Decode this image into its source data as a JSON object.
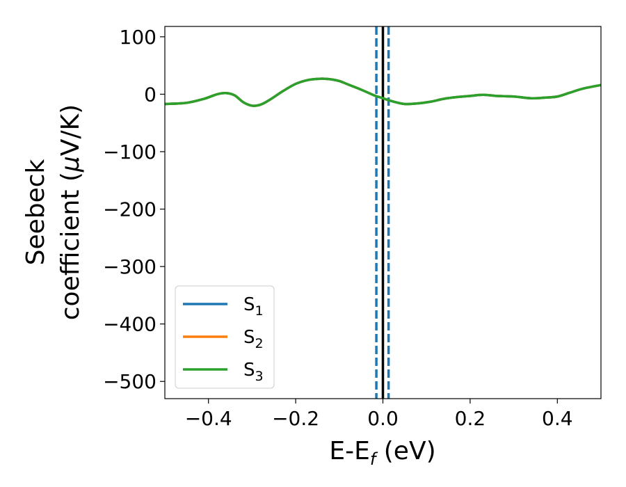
{
  "chart_data": {
    "type": "line",
    "title": "",
    "xlabel": "E-E",
    "xlabel_sub": "f",
    "xlabel_unit": " (eV)",
    "ylabel_line1": "Seebeck",
    "ylabel_line2": "coefficient  (",
    "ylabel_mu": "μ",
    "ylabel_unit": "V/K)",
    "xlim": [
      -0.5,
      0.5
    ],
    "ylim": [
      -530,
      118
    ],
    "xticks": [
      -0.4,
      -0.2,
      0.0,
      0.2,
      0.4
    ],
    "xtick_labels": [
      "−0.4",
      "−0.2",
      "0.0",
      "0.2",
      "0.4"
    ],
    "yticks": [
      100,
      0,
      -100,
      -200,
      -300,
      -400,
      -500
    ],
    "ytick_labels": [
      "100",
      "0",
      "−100",
      "−200",
      "−300",
      "−400",
      "−500"
    ],
    "grid": false,
    "legend_placement": "lower-left",
    "vertical_lines": [
      {
        "x": 0.0,
        "color": "#000000",
        "style": "solid"
      },
      {
        "x": -0.015,
        "color": "#1f77b4",
        "style": "dashed"
      },
      {
        "x": 0.013,
        "color": "#1f77b4",
        "style": "dashed"
      }
    ],
    "x": [
      -0.5,
      -0.45,
      -0.41,
      -0.38,
      -0.36,
      -0.34,
      -0.32,
      -0.3,
      -0.28,
      -0.26,
      -0.23,
      -0.2,
      -0.17,
      -0.14,
      -0.12,
      -0.1,
      -0.08,
      -0.05,
      -0.02,
      0.0,
      0.02,
      0.05,
      0.08,
      0.11,
      0.14,
      0.17,
      0.2,
      0.23,
      0.26,
      0.3,
      0.34,
      0.37,
      0.4,
      0.43,
      0.46,
      0.5
    ],
    "series": [
      {
        "name": "S",
        "sub": "1",
        "color": "#1f77b4",
        "values": [
          -17,
          -15,
          -8,
          0,
          2,
          -2,
          -14,
          -20,
          -18,
          -10,
          5,
          18,
          25,
          27,
          26,
          23,
          17,
          8,
          -2,
          -7,
          -12,
          -17,
          -16,
          -13,
          -8,
          -5,
          -3,
          -1,
          -3,
          -4,
          -7,
          -6,
          -4,
          3,
          10,
          16
        ]
      },
      {
        "name": "S",
        "sub": "2",
        "color": "#ff7f0e",
        "values": [
          -17,
          -15,
          -8,
          0,
          2,
          -2,
          -14,
          -20,
          -18,
          -10,
          5,
          18,
          25,
          27,
          26,
          23,
          17,
          8,
          -2,
          -7,
          -12,
          -17,
          -16,
          -13,
          -8,
          -5,
          -3,
          -1,
          -3,
          -4,
          -7,
          -6,
          -4,
          3,
          10,
          16
        ]
      },
      {
        "name": "S",
        "sub": "3",
        "color": "#2ca02c",
        "values": [
          -17,
          -15,
          -8,
          0,
          2,
          -2,
          -14,
          -20,
          -18,
          -10,
          5,
          18,
          25,
          27,
          26,
          23,
          17,
          8,
          -2,
          -7,
          -12,
          -17,
          -16,
          -13,
          -8,
          -5,
          -3,
          -1,
          -3,
          -4,
          -7,
          -6,
          -4,
          3,
          10,
          16
        ]
      }
    ]
  }
}
